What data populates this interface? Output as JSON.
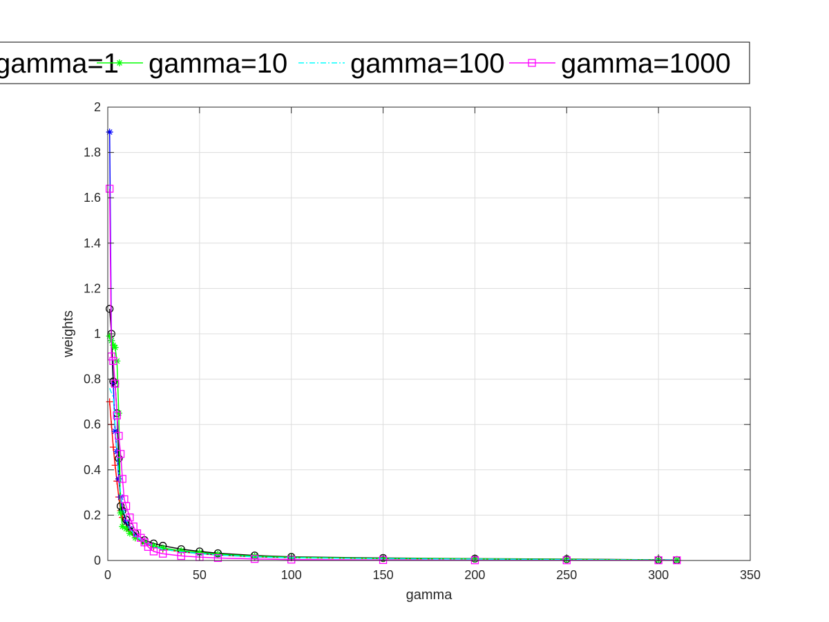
{
  "chart_data": {
    "type": "line",
    "xlabel": "gamma",
    "ylabel": "weights",
    "xlim": [
      0,
      350
    ],
    "ylim": [
      0,
      2
    ],
    "x_ticks": [
      0,
      50,
      100,
      150,
      200,
      250,
      300,
      350
    ],
    "y_ticks": [
      0,
      0.2,
      0.4,
      0.6,
      0.8,
      1,
      1.2,
      1.4,
      1.6,
      1.8,
      2
    ],
    "x_tick_labels": [
      "0",
      "50",
      "100",
      "150",
      "200",
      "250",
      "300",
      "350"
    ],
    "y_tick_labels": [
      "0",
      "0.2",
      "0.4",
      "0.6",
      "0.8",
      "1",
      "1.2",
      "1.4",
      "1.6",
      "1.8",
      "2"
    ],
    "grid": true,
    "legend_position": "top, outside plot area, clipped on left",
    "series": [
      {
        "name": "",
        "color": "#ff0000",
        "line_style": "solid",
        "marker": "plus",
        "points": [
          [
            1,
            0.7
          ],
          [
            2,
            0.6
          ],
          [
            3,
            0.5
          ],
          [
            4,
            0.42
          ],
          [
            5,
            0.35
          ],
          [
            6,
            0.28
          ],
          [
            7,
            0.22
          ],
          [
            8,
            0.19
          ],
          [
            10,
            0.16
          ],
          [
            12,
            0.13
          ],
          [
            15,
            0.1
          ],
          [
            20,
            0.075
          ],
          [
            25,
            0.06
          ],
          [
            30,
            0.05
          ],
          [
            40,
            0.038
          ],
          [
            50,
            0.03
          ],
          [
            60,
            0.024
          ],
          [
            80,
            0.016
          ],
          [
            100,
            0.012
          ],
          [
            150,
            0.008
          ],
          [
            200,
            0.006
          ],
          [
            250,
            0.004
          ],
          [
            300,
            0.002
          ],
          [
            310,
            0.002
          ]
        ]
      },
      {
        "name": "",
        "color": "#0000ff",
        "line_style": "solid",
        "marker": "star",
        "points": [
          [
            1,
            1.89
          ],
          [
            2,
            0.97
          ],
          [
            3,
            0.78
          ],
          [
            4,
            0.57
          ],
          [
            5,
            0.48
          ],
          [
            6,
            0.36
          ],
          [
            7,
            0.28
          ],
          [
            8,
            0.22
          ],
          [
            10,
            0.17
          ],
          [
            12,
            0.14
          ],
          [
            15,
            0.11
          ],
          [
            20,
            0.08
          ],
          [
            25,
            0.065
          ],
          [
            30,
            0.055
          ],
          [
            40,
            0.042
          ],
          [
            50,
            0.033
          ],
          [
            60,
            0.026
          ],
          [
            80,
            0.018
          ],
          [
            100,
            0.013
          ],
          [
            150,
            0.009
          ],
          [
            200,
            0.007
          ],
          [
            250,
            0.005
          ],
          [
            300,
            0.003
          ],
          [
            310,
            0.002
          ]
        ]
      },
      {
        "name": "gamma=1",
        "color": "#000000",
        "line_style": "solid",
        "marker": "circle",
        "points": [
          [
            1,
            1.11
          ],
          [
            2,
            1.0
          ],
          [
            3,
            0.79
          ],
          [
            4,
            0.78
          ],
          [
            5,
            0.65
          ],
          [
            6,
            0.45
          ],
          [
            7,
            0.24
          ],
          [
            8,
            0.22
          ],
          [
            10,
            0.18
          ],
          [
            12,
            0.15
          ],
          [
            15,
            0.12
          ],
          [
            20,
            0.09
          ],
          [
            25,
            0.075
          ],
          [
            30,
            0.065
          ],
          [
            40,
            0.05
          ],
          [
            50,
            0.04
          ],
          [
            60,
            0.032
          ],
          [
            80,
            0.022
          ],
          [
            100,
            0.016
          ],
          [
            150,
            0.011
          ],
          [
            200,
            0.008
          ],
          [
            250,
            0.006
          ],
          [
            300,
            0.003
          ],
          [
            310,
            0.002
          ]
        ]
      },
      {
        "name": "gamma=10",
        "color": "#00ff00",
        "line_style": "solid",
        "marker": "star",
        "points": [
          [
            1,
            0.99
          ],
          [
            2,
            0.97
          ],
          [
            3,
            0.95
          ],
          [
            4,
            0.94
          ],
          [
            5,
            0.88
          ],
          [
            6,
            0.65
          ],
          [
            7,
            0.21
          ],
          [
            8,
            0.15
          ],
          [
            10,
            0.14
          ],
          [
            12,
            0.12
          ],
          [
            15,
            0.1
          ],
          [
            20,
            0.08
          ],
          [
            25,
            0.065
          ],
          [
            30,
            0.055
          ],
          [
            40,
            0.043
          ],
          [
            50,
            0.035
          ],
          [
            60,
            0.028
          ],
          [
            80,
            0.019
          ],
          [
            100,
            0.014
          ],
          [
            150,
            0.009
          ],
          [
            200,
            0.007
          ],
          [
            250,
            0.005
          ],
          [
            300,
            0.003
          ],
          [
            310,
            0.002
          ]
        ]
      },
      {
        "name": "gamma=100",
        "color": "#00ffff",
        "line_style": "dash-dot",
        "marker": "none",
        "points": [
          [
            1,
            0.76
          ],
          [
            2,
            0.74
          ],
          [
            3,
            0.72
          ],
          [
            4,
            0.6
          ],
          [
            5,
            0.48
          ],
          [
            6,
            0.38
          ],
          [
            7,
            0.3
          ],
          [
            8,
            0.24
          ],
          [
            10,
            0.18
          ],
          [
            12,
            0.14
          ],
          [
            15,
            0.11
          ],
          [
            20,
            0.08
          ],
          [
            25,
            0.062
          ],
          [
            30,
            0.05
          ],
          [
            40,
            0.038
          ],
          [
            50,
            0.03
          ],
          [
            60,
            0.024
          ],
          [
            80,
            0.016
          ],
          [
            100,
            0.012
          ],
          [
            150,
            0.008
          ],
          [
            200,
            0.006
          ],
          [
            250,
            0.004
          ],
          [
            300,
            0.002
          ],
          [
            310,
            0.002
          ]
        ]
      },
      {
        "name": "gamma=1000",
        "color": "#ff00ff",
        "line_style": "solid",
        "marker": "square",
        "points": [
          [
            1,
            1.64
          ],
          [
            2,
            0.9
          ],
          [
            3,
            0.88
          ],
          [
            4,
            0.78
          ],
          [
            5,
            0.64
          ],
          [
            6,
            0.55
          ],
          [
            7,
            0.47
          ],
          [
            8,
            0.36
          ],
          [
            9,
            0.27
          ],
          [
            10,
            0.24
          ],
          [
            12,
            0.19
          ],
          [
            14,
            0.15
          ],
          [
            16,
            0.12
          ],
          [
            18,
            0.1
          ],
          [
            20,
            0.08
          ],
          [
            22,
            0.06
          ],
          [
            25,
            0.04
          ],
          [
            30,
            0.03
          ],
          [
            40,
            0.02
          ],
          [
            50,
            0.015
          ],
          [
            60,
            0.011
          ],
          [
            80,
            0.007
          ],
          [
            100,
            0.004
          ],
          [
            150,
            0.002
          ],
          [
            200,
            0.001
          ],
          [
            250,
            0.001
          ],
          [
            300,
            0.001
          ],
          [
            310,
            0.001
          ]
        ]
      }
    ]
  }
}
